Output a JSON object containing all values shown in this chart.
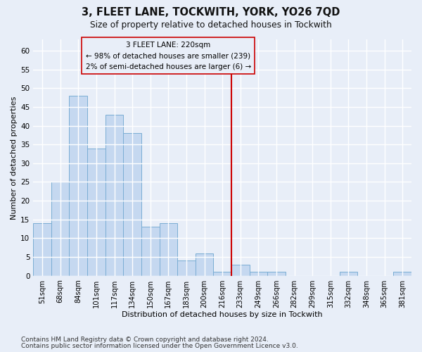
{
  "title": "3, FLEET LANE, TOCKWITH, YORK, YO26 7QD",
  "subtitle": "Size of property relative to detached houses in Tockwith",
  "xlabel": "Distribution of detached houses by size in Tockwith",
  "ylabel": "Number of detached properties",
  "categories": [
    "51sqm",
    "68sqm",
    "84sqm",
    "101sqm",
    "117sqm",
    "134sqm",
    "150sqm",
    "167sqm",
    "183sqm",
    "200sqm",
    "216sqm",
    "233sqm",
    "249sqm",
    "266sqm",
    "282sqm",
    "299sqm",
    "315sqm",
    "332sqm",
    "348sqm",
    "365sqm",
    "381sqm"
  ],
  "bar_values": [
    14,
    25,
    48,
    34,
    43,
    38,
    13,
    14,
    4,
    6,
    1,
    3,
    1,
    1,
    0,
    0,
    0,
    1,
    0,
    0,
    1
  ],
  "bar_color": "#c5d8f0",
  "bar_edge_color": "#7aadd4",
  "bg_color": "#e8eef8",
  "plot_bg_color": "#e8eef8",
  "grid_color": "#ffffff",
  "vline_color": "#cc0000",
  "vline_index": 10.5,
  "annotation_line1": "3 FLEET LANE: 220sqm",
  "annotation_line2": "← 98% of detached houses are smaller (239)",
  "annotation_line3": "2% of semi-detached houses are larger (6) →",
  "annotation_box_edgecolor": "#cc0000",
  "ylim": [
    0,
    63
  ],
  "yticks": [
    0,
    5,
    10,
    15,
    20,
    25,
    30,
    35,
    40,
    45,
    50,
    55,
    60
  ],
  "footnote1": "Contains HM Land Registry data © Crown copyright and database right 2024.",
  "footnote2": "Contains public sector information licensed under the Open Government Licence v3.0."
}
